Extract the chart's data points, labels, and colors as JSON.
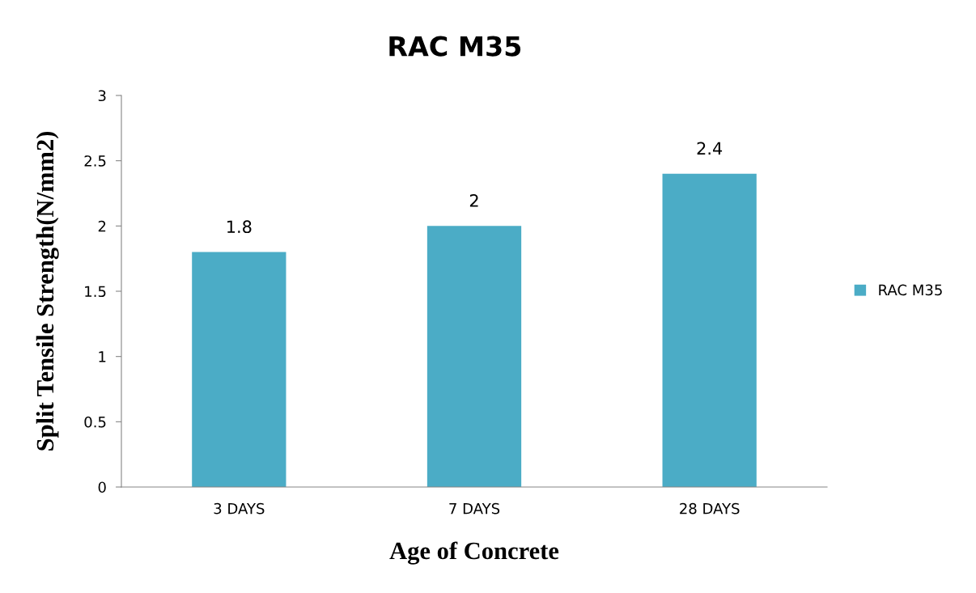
{
  "chart_data": {
    "type": "bar",
    "title": "RAC M35",
    "xlabel": "Age of Concrete",
    "ylabel": "Split Tensile Strength(N/mm2)",
    "categories": [
      "3 DAYS",
      "7 DAYS",
      "28 DAYS"
    ],
    "series": [
      {
        "name": "RAC M35",
        "color": "#4bacc6",
        "values": [
          1.8,
          2,
          2.4
        ]
      }
    ],
    "ylim": [
      0,
      3
    ],
    "yticks": [
      0,
      0.5,
      1,
      1.5,
      2,
      2.5,
      3
    ],
    "grid": false,
    "legend": "right",
    "data_labels": true
  }
}
